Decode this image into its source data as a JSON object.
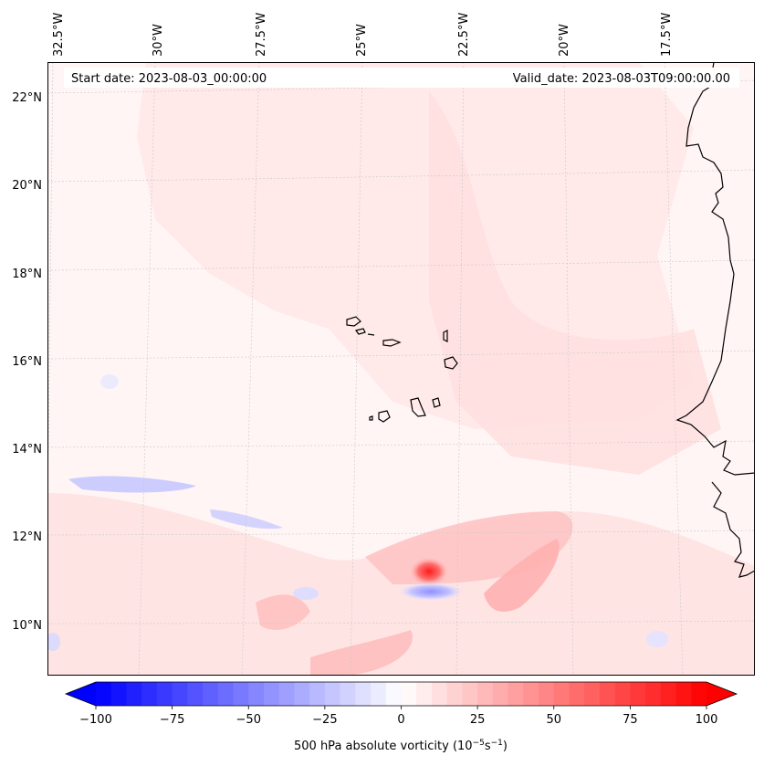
{
  "map": {
    "start_label": "Start date: 2023-08-03_00:00:00",
    "valid_label": "Valid_date: 2023-08-03T09:00:00.00",
    "lon_ticks": [
      "32.5°W",
      "30°W",
      "27.5°W",
      "25°W",
      "22.5°W",
      "20°W",
      "17.5°W"
    ],
    "lat_ticks": [
      "22°N",
      "20°N",
      "18°N",
      "16°N",
      "14°N",
      "12°N",
      "10°N"
    ],
    "extent": {
      "lon_min": -33.0,
      "lon_max": -15.3,
      "lat_min": 8.8,
      "lat_max": 22.8
    }
  },
  "colorbar": {
    "label": "500 hPa absolute vorticity (10",
    "label_exp1": "−5",
    "label_mid": "s",
    "label_exp2": "−1",
    "label_end": ")",
    "tick_labels": [
      "−100",
      "−75",
      "−50",
      "−25",
      "0",
      "25",
      "50",
      "75",
      "100"
    ],
    "min": -100,
    "max": 100,
    "levels": 40,
    "colors": {
      "negative": "#0000ff",
      "neutral": "#ffffff",
      "positive": "#ff0000"
    }
  }
}
